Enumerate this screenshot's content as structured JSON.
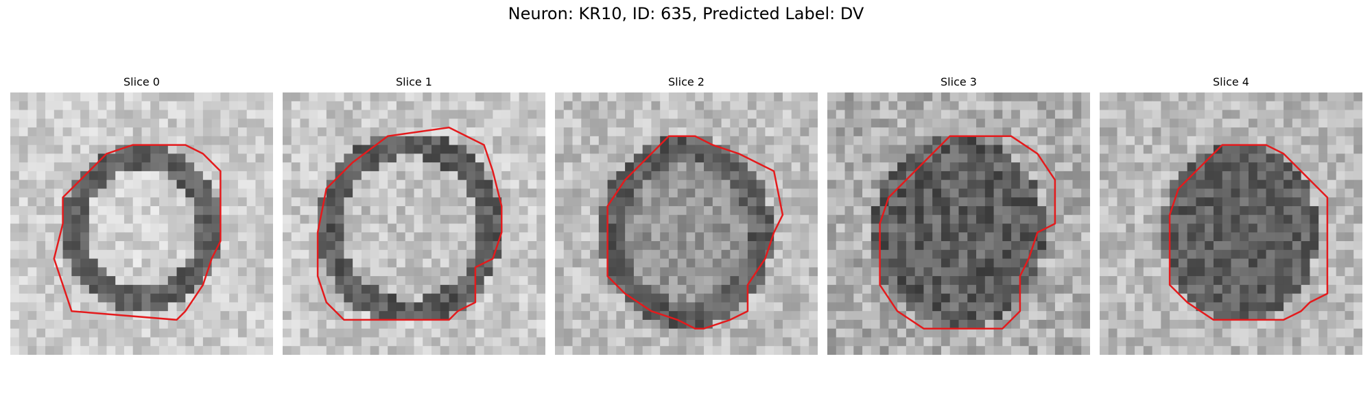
{
  "figure": {
    "title": "Neuron: KR10, ID: 635, Predicted Label: DV"
  },
  "contour_color": "#e41a1c",
  "grid": 30,
  "panels": [
    {
      "title": "Slice 0",
      "ring": {
        "cx": 15.0,
        "cy": 15.5,
        "rx": 9.0,
        "ry": 9.5,
        "width": 2.6,
        "inner": 210,
        "ring": 95,
        "outside": 205,
        "noise": 28
      },
      "contour": [
        [
          14,
          6
        ],
        [
          20,
          6
        ],
        [
          22,
          7
        ],
        [
          24,
          9
        ],
        [
          24,
          17
        ],
        [
          23,
          19
        ],
        [
          22,
          22
        ],
        [
          20,
          25
        ],
        [
          19,
          26
        ],
        [
          7,
          25
        ],
        [
          6,
          22
        ],
        [
          5,
          19
        ],
        [
          6,
          15
        ],
        [
          6,
          12
        ],
        [
          8,
          10
        ],
        [
          11,
          7
        ]
      ]
    },
    {
      "title": "Slice 1",
      "ring": {
        "cx": 14.5,
        "cy": 15.5,
        "rx": 10.5,
        "ry": 11.0,
        "width": 2.8,
        "inner": 195,
        "ring": 90,
        "outside": 200,
        "noise": 30
      },
      "contour": [
        [
          12,
          5
        ],
        [
          19,
          4
        ],
        [
          23,
          6
        ],
        [
          24,
          9
        ],
        [
          25,
          13
        ],
        [
          25,
          16
        ],
        [
          24,
          19
        ],
        [
          22,
          20
        ],
        [
          22,
          24
        ],
        [
          20,
          25
        ],
        [
          19,
          26
        ],
        [
          7,
          26
        ],
        [
          5,
          24
        ],
        [
          4,
          21
        ],
        [
          4,
          16
        ],
        [
          5,
          11
        ],
        [
          8,
          8
        ]
      ]
    },
    {
      "title": "Slice 2",
      "ring": {
        "cx": 15.0,
        "cy": 16.0,
        "rx": 10.0,
        "ry": 11.0,
        "width": 3.0,
        "inner": 150,
        "ring": 95,
        "outside": 190,
        "noise": 32
      },
      "contour": [
        [
          13,
          5
        ],
        [
          16,
          5
        ],
        [
          18,
          6
        ],
        [
          21,
          7
        ],
        [
          25,
          9
        ],
        [
          26,
          14
        ],
        [
          25,
          16
        ],
        [
          24,
          19
        ],
        [
          22,
          22
        ],
        [
          22,
          25
        ],
        [
          20,
          26
        ],
        [
          17,
          27
        ],
        [
          16,
          27
        ],
        [
          14,
          26
        ],
        [
          11,
          25
        ],
        [
          8,
          23
        ],
        [
          6,
          21
        ],
        [
          6,
          13
        ],
        [
          8,
          10
        ]
      ]
    },
    {
      "title": "Slice 3",
      "ring": {
        "cx": 15.0,
        "cy": 16.0,
        "rx": 10.0,
        "ry": 11.0,
        "width": 0,
        "inner": 95,
        "ring": 95,
        "outside": 175,
        "noise": 38
      },
      "contour": [
        [
          14,
          5
        ],
        [
          21,
          5
        ],
        [
          24,
          7
        ],
        [
          26,
          10
        ],
        [
          26,
          15
        ],
        [
          24,
          16
        ],
        [
          23,
          19
        ],
        [
          22,
          21
        ],
        [
          22,
          25
        ],
        [
          20,
          27
        ],
        [
          11,
          27
        ],
        [
          8,
          25
        ],
        [
          6,
          22
        ],
        [
          6,
          15
        ],
        [
          7,
          12
        ],
        [
          9,
          10
        ]
      ]
    },
    {
      "title": "Slice 4",
      "ring": {
        "cx": 16.0,
        "cy": 16.0,
        "rx": 9.0,
        "ry": 10.0,
        "width": 0,
        "inner": 95,
        "ring": 95,
        "outside": 185,
        "noise": 32
      },
      "contour": [
        [
          14,
          6
        ],
        [
          19,
          6
        ],
        [
          21,
          7
        ],
        [
          24,
          10
        ],
        [
          26,
          12
        ],
        [
          26,
          23
        ],
        [
          24,
          24
        ],
        [
          23,
          25
        ],
        [
          21,
          26
        ],
        [
          13,
          26
        ],
        [
          10,
          24
        ],
        [
          8,
          22
        ],
        [
          8,
          14
        ],
        [
          9,
          11
        ],
        [
          11,
          9
        ],
        [
          12,
          8
        ]
      ]
    }
  ]
}
